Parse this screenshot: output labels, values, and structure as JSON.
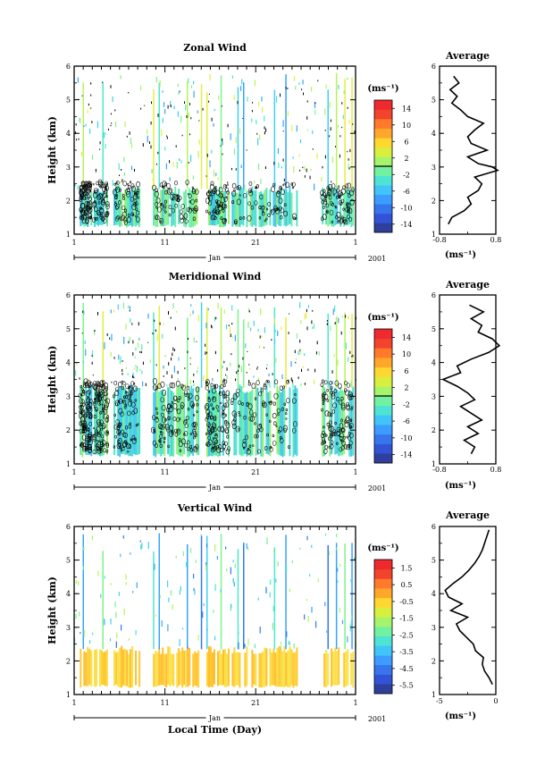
{
  "chart_data": [
    {
      "type": "heatmap",
      "title": "Zonal Wind",
      "ylabel": "Height (km)",
      "y_ticks": [
        "1",
        "2",
        "3",
        "4",
        "5",
        "6"
      ],
      "ylim": [
        1,
        6
      ],
      "x_ticks": [
        "1",
        "11",
        "21",
        "1"
      ],
      "x_month": "Jan",
      "x_year": "2001",
      "colorbar": {
        "unit": "(ms⁻¹)",
        "labels": [
          "14",
          "10",
          "6",
          "2",
          "-2",
          "-6",
          "-10",
          "-14"
        ],
        "range": [
          -16,
          16
        ],
        "zero_line": 2
      },
      "average_profile": {
        "title": "Average",
        "xlabel": "(ms⁻¹)",
        "x_ticks": [
          "-0.8",
          "0.8"
        ],
        "xlim": [
          -0.8,
          0.8
        ],
        "y_ticks": [
          "1",
          "2",
          "3",
          "4",
          "5",
          "6"
        ],
        "height": [
          1.3,
          1.5,
          1.7,
          1.9,
          2.1,
          2.3,
          2.5,
          2.7,
          2.9,
          3.0,
          3.1,
          3.3,
          3.5,
          3.7,
          3.9,
          4.1,
          4.3,
          4.5,
          4.7,
          4.9,
          5.1,
          5.3,
          5.5,
          5.7
        ],
        "value": [
          -0.55,
          -0.45,
          -0.1,
          0.1,
          0.0,
          0.3,
          0.4,
          0.2,
          0.85,
          0.7,
          0.3,
          0.0,
          0.55,
          0.1,
          0.0,
          0.2,
          0.45,
          0.0,
          -0.2,
          -0.45,
          -0.3,
          -0.5,
          -0.25,
          -0.4
        ]
      }
    },
    {
      "type": "heatmap",
      "title": "Meridional Wind",
      "ylabel": "Height (km)",
      "y_ticks": [
        "1",
        "2",
        "3",
        "4",
        "5",
        "6"
      ],
      "ylim": [
        1,
        6
      ],
      "x_ticks": [
        "1",
        "11",
        "21",
        "1"
      ],
      "x_month": "Jan",
      "x_year": "2001",
      "colorbar": {
        "unit": "(ms⁻¹)",
        "labels": [
          "14",
          "10",
          "6",
          "2",
          "-2",
          "-6",
          "-10",
          "-14"
        ],
        "range": [
          -16,
          16
        ],
        "zero_line": 2
      },
      "average_profile": {
        "title": "Average",
        "xlabel": "(ms⁻¹)",
        "x_ticks": [
          "-0.8",
          "0.8"
        ],
        "xlim": [
          -0.8,
          0.8
        ],
        "y_ticks": [
          "1",
          "2",
          "3",
          "4",
          "5",
          "6"
        ],
        "height": [
          1.3,
          1.5,
          1.7,
          1.9,
          2.1,
          2.3,
          2.5,
          2.7,
          2.9,
          3.1,
          3.3,
          3.5,
          3.7,
          3.9,
          4.1,
          4.3,
          4.5,
          4.7,
          4.9,
          5.1,
          5.3,
          5.5,
          5.7
        ],
        "value": [
          0.1,
          0.2,
          -0.1,
          0.3,
          0.0,
          0.4,
          0.1,
          -0.2,
          0.2,
          0.0,
          -0.3,
          -0.7,
          -0.2,
          -0.3,
          0.1,
          0.6,
          0.9,
          0.7,
          0.3,
          0.4,
          0.1,
          0.45,
          0.05
        ]
      }
    },
    {
      "type": "heatmap",
      "title": "Vertical Wind",
      "ylabel": "Height (km)",
      "xlabel": "Local Time (Day)",
      "y_ticks": [
        "1",
        "2",
        "3",
        "4",
        "5",
        "6"
      ],
      "ylim": [
        1,
        6
      ],
      "x_ticks": [
        "1",
        "11",
        "21",
        "1"
      ],
      "x_month": "Jan",
      "x_year": "2001",
      "colorbar": {
        "unit": "(ms⁻¹)",
        "labels": [
          "1.5",
          "0.5",
          "-0.5",
          "-1.5",
          "-2.5",
          "-3.5",
          "-4.5",
          "-5.5"
        ],
        "range": [
          -6,
          2
        ]
      },
      "average_profile": {
        "title": "Average",
        "xlabel": "(ms⁻¹)",
        "x_ticks": [
          "-5",
          "0"
        ],
        "xlim": [
          -5,
          0
        ],
        "y_ticks": [
          "1",
          "2",
          "3",
          "4",
          "5",
          "6"
        ],
        "height": [
          1.3,
          1.5,
          1.7,
          1.9,
          2.1,
          2.3,
          2.5,
          2.7,
          2.9,
          3.1,
          3.3,
          3.5,
          3.7,
          3.9,
          4.1,
          4.3,
          4.5,
          4.7,
          4.9,
          5.1,
          5.3,
          5.5,
          5.7,
          5.9
        ],
        "value": [
          -0.3,
          -0.6,
          -1.0,
          -1.2,
          -1.1,
          -1.8,
          -2.0,
          -2.6,
          -3.2,
          -3.5,
          -2.5,
          -4.0,
          -3.0,
          -4.2,
          -4.5,
          -3.8,
          -3.0,
          -2.4,
          -1.9,
          -1.5,
          -1.2,
          -1.0,
          -0.8,
          -0.6
        ]
      }
    }
  ]
}
